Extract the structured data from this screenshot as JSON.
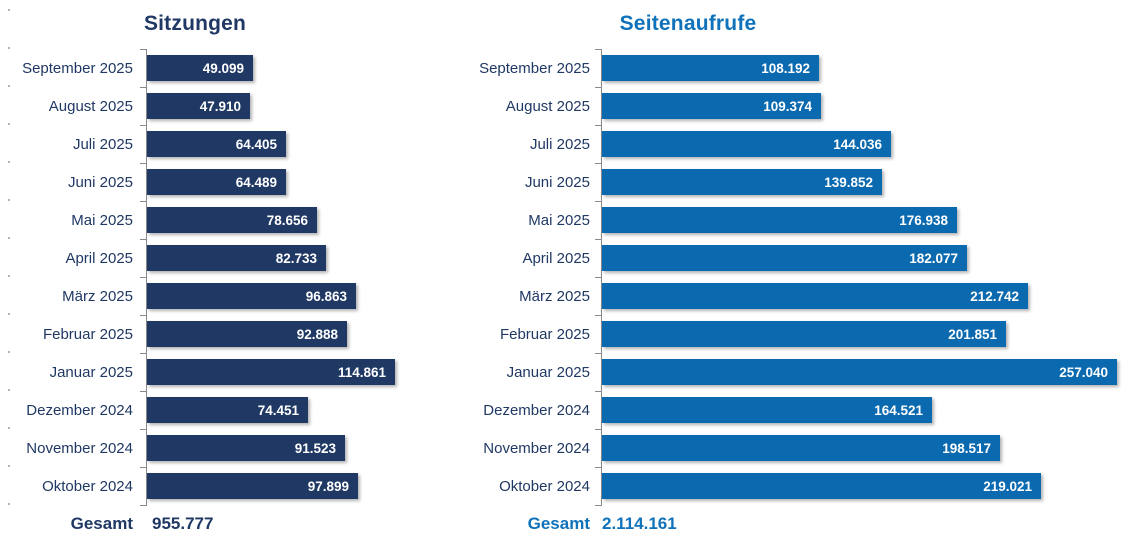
{
  "chart_data": [
    {
      "type": "bar",
      "orientation": "horizontal",
      "title": "Sitzungen",
      "categories": [
        "September 2025",
        "August 2025",
        "Juli 2025",
        "Juni 2025",
        "Mai 2025",
        "April 2025",
        "März 2025",
        "Februar 2025",
        "Januar 2025",
        "Dezember 2024",
        "November 2024",
        "Oktober 2024"
      ],
      "values": [
        49099,
        47910,
        64405,
        64489,
        78656,
        82733,
        96863,
        92888,
        114861,
        74451,
        91523,
        97899
      ],
      "value_labels": [
        "49.099",
        "47.910",
        "64.405",
        "64.489",
        "78.656",
        "82.733",
        "96.863",
        "92.888",
        "114.861",
        "74.451",
        "91.523",
        "97.899"
      ],
      "total_label": "Gesamt",
      "total_value": "955.777",
      "xlim": [
        0,
        120000
      ],
      "grid": false,
      "legend": false,
      "bar_color": "#203864",
      "title_color": "#203864",
      "label_color": "#203864",
      "total_color": "#203864",
      "value_text_color": "#ffffff",
      "axis_color": "#898989"
    },
    {
      "type": "bar",
      "orientation": "horizontal",
      "title": "Seitenaufrufe",
      "categories": [
        "September 2025",
        "August 2025",
        "Juli 2025",
        "Juni 2025",
        "Mai 2025",
        "April 2025",
        "März 2025",
        "Februar 2025",
        "Januar 2025",
        "Dezember 2024",
        "November 2024",
        "Oktober 2024"
      ],
      "values": [
        108192,
        109374,
        144036,
        139852,
        176938,
        182077,
        212742,
        201851,
        257040,
        164521,
        198517,
        219021
      ],
      "value_labels": [
        "108.192",
        "109.374",
        "144.036",
        "139.852",
        "176.938",
        "182.077",
        "212.742",
        "201.851",
        "257.040",
        "164.521",
        "198.517",
        "219.021"
      ],
      "total_label": "Gesamt",
      "total_value": "2.114.161",
      "xlim": [
        0,
        270000
      ],
      "grid": false,
      "legend": false,
      "bar_color": "#0a69af",
      "title_color": "#0f72ba",
      "label_color": "#203864",
      "total_color": "#0f72ba",
      "value_text_color": "#ffffff",
      "axis_color": "#898989"
    }
  ]
}
